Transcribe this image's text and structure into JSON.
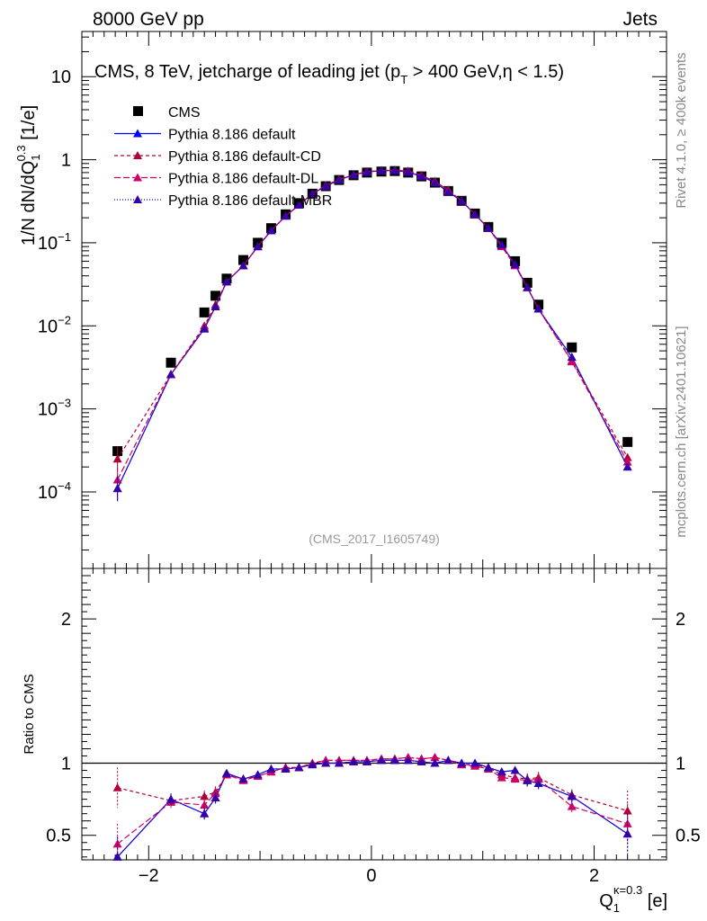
{
  "header": {
    "left": "8000 GeV pp",
    "right": "Jets"
  },
  "top_title": {
    "main": "CMS, 8 TeV, jetcharge of leading jet (p",
    "sub_T": "T",
    "rest": " > 400 GeV,η < 1.5)"
  },
  "side_text": {
    "rivet": "Rivet 4.1.0, ≥ 400k events",
    "mcplots": "mcplots.cern.ch [arXiv:2401.10621]"
  },
  "analysis_id": "(CMS_2017_I1605749)",
  "y_label_top": {
    "main": "1/N dN/dQ",
    "sub": "1",
    "sup": "0.3",
    "unit": " [1/e]"
  },
  "y_label_bottom": "Ratio to CMS",
  "x_label": {
    "main": "Q",
    "sub": "1",
    "sup": "κ=0.3",
    "unit": " [e]"
  },
  "legend": [
    {
      "label": "CMS",
      "color": "#000000",
      "marker": "square",
      "dash": ""
    },
    {
      "label": "Pythia 8.186 default",
      "color": "#0000ff",
      "marker": "triangle",
      "dash": ""
    },
    {
      "label": "Pythia 8.186 default-CD",
      "color": "#b0003a",
      "marker": "triangle",
      "dash": "4,3"
    },
    {
      "label": "Pythia 8.186 default-DL",
      "color": "#cc0066",
      "marker": "triangle",
      "dash": "7,3"
    },
    {
      "label": "Pythia 8.186 default-MBR",
      "color": "#3300aa",
      "marker": "triangle",
      "dash": "1,2"
    }
  ],
  "chart_data": [
    {
      "type": "scatter",
      "panel": "main",
      "title": "CMS, 8 TeV, jetcharge of leading jet (pT > 400 GeV,η < 1.5)",
      "xlabel": "Q1^κ=0.3 [e]",
      "ylabel": "1/N dN/dQ1^0.3 [1/e]",
      "yscale": "log",
      "xlim": [
        -2.6,
        2.65
      ],
      "ylim": [
        1.2e-05,
        35
      ],
      "x_ticks": [
        -2,
        0,
        2
      ],
      "y_tick_labels": [
        "10^-4",
        "10^-3",
        "10^-2",
        "10^-1",
        "1",
        "10"
      ],
      "x": [
        -2.28,
        -1.8,
        -1.5,
        -1.4,
        -1.3,
        -1.15,
        -1.02,
        -0.9,
        -0.77,
        -0.65,
        -0.53,
        -0.41,
        -0.29,
        -0.16,
        -0.04,
        0.09,
        0.21,
        0.33,
        0.45,
        0.57,
        0.69,
        0.81,
        0.93,
        1.05,
        1.17,
        1.29,
        1.4,
        1.5,
        1.8,
        2.3
      ],
      "series": [
        {
          "name": "CMS",
          "values": [
            0.00031,
            0.0036,
            0.0145,
            0.023,
            0.037,
            0.062,
            0.1,
            0.15,
            0.22,
            0.3,
            0.39,
            0.48,
            0.57,
            0.65,
            0.7,
            0.72,
            0.73,
            0.7,
            0.63,
            0.53,
            0.42,
            0.32,
            0.225,
            0.155,
            0.1,
            0.06,
            0.033,
            0.018,
            0.0055,
            0.0004
          ]
        },
        {
          "name": "Pythia 8.186 default",
          "values": [
            0.00011,
            0.0026,
            0.0092,
            0.017,
            0.034,
            0.053,
            0.09,
            0.14,
            0.21,
            0.285,
            0.39,
            0.48,
            0.57,
            0.66,
            0.71,
            0.74,
            0.74,
            0.71,
            0.63,
            0.53,
            0.41,
            0.32,
            0.22,
            0.15,
            0.094,
            0.055,
            0.029,
            0.016,
            0.0042,
            0.0002
          ]
        },
        {
          "name": "Pythia 8.186 default-CD",
          "values": [
            0.00025,
            0.0026,
            0.01,
            0.018,
            0.034,
            0.053,
            0.09,
            0.14,
            0.21,
            0.285,
            0.39,
            0.49,
            0.58,
            0.66,
            0.72,
            0.74,
            0.75,
            0.73,
            0.65,
            0.55,
            0.43,
            0.32,
            0.22,
            0.15,
            0.092,
            0.054,
            0.029,
            0.016,
            0.0038,
            0.00026
          ]
        },
        {
          "name": "Pythia 8.186 default-DL",
          "values": [
            0.00014,
            0.0026,
            0.0095,
            0.017,
            0.034,
            0.053,
            0.09,
            0.14,
            0.21,
            0.285,
            0.39,
            0.49,
            0.58,
            0.66,
            0.72,
            0.74,
            0.75,
            0.73,
            0.65,
            0.55,
            0.43,
            0.32,
            0.22,
            0.15,
            0.09,
            0.053,
            0.029,
            0.016,
            0.0037,
            0.00023
          ]
        },
        {
          "name": "Pythia 8.186 default-MBR",
          "values": [
            0.00011,
            0.0026,
            0.0092,
            0.017,
            0.034,
            0.053,
            0.09,
            0.14,
            0.21,
            0.285,
            0.39,
            0.48,
            0.57,
            0.66,
            0.71,
            0.74,
            0.74,
            0.71,
            0.63,
            0.53,
            0.41,
            0.32,
            0.22,
            0.15,
            0.094,
            0.055,
            0.029,
            0.016,
            0.0042,
            0.0002
          ]
        }
      ]
    },
    {
      "type": "line",
      "panel": "ratio",
      "ylabel": "Ratio to CMS",
      "ylim": [
        0.33,
        2.35
      ],
      "y_ticks": [
        0.5,
        1,
        2
      ],
      "reference_line": 1,
      "x": [
        -2.28,
        -1.8,
        -1.5,
        -1.4,
        -1.3,
        -1.15,
        -1.02,
        -0.9,
        -0.77,
        -0.65,
        -0.53,
        -0.41,
        -0.29,
        -0.16,
        -0.04,
        0.09,
        0.21,
        0.33,
        0.45,
        0.57,
        0.69,
        0.81,
        0.93,
        1.05,
        1.17,
        1.29,
        1.4,
        1.5,
        1.8,
        2.3
      ],
      "series": [
        {
          "name": "Pythia 8.186 default",
          "values": [
            0.35,
            0.75,
            0.65,
            0.76,
            0.93,
            0.89,
            0.92,
            0.96,
            0.96,
            0.97,
            0.99,
            1.0,
            1.0,
            1.01,
            1.01,
            1.02,
            1.02,
            1.02,
            1.01,
            1.0,
            1.02,
            1.0,
            1.0,
            0.97,
            0.94,
            0.95,
            0.88,
            0.86,
            0.77,
            0.51
          ]
        },
        {
          "name": "Pythia 8.186 default-CD",
          "values": [
            0.83,
            0.74,
            0.77,
            0.8,
            0.92,
            0.89,
            0.91,
            0.94,
            0.97,
            0.97,
            1.0,
            1.02,
            1.02,
            1.02,
            1.02,
            1.03,
            1.03,
            1.04,
            1.03,
            1.04,
            1.02,
            0.99,
            0.99,
            0.97,
            0.92,
            0.9,
            0.89,
            0.9,
            0.78,
            0.67
          ]
        },
        {
          "name": "Pythia 8.186 default-DL",
          "values": [
            0.44,
            0.73,
            0.71,
            0.79,
            0.92,
            0.88,
            0.91,
            0.94,
            0.97,
            0.97,
            1.0,
            1.02,
            1.02,
            1.02,
            1.02,
            1.03,
            1.03,
            1.04,
            1.03,
            1.04,
            1.02,
            0.99,
            0.98,
            0.96,
            0.9,
            0.89,
            0.88,
            0.89,
            0.7,
            0.58
          ]
        },
        {
          "name": "Pythia 8.186 default-MBR",
          "values": [
            0.35,
            0.75,
            0.65,
            0.76,
            0.93,
            0.89,
            0.92,
            0.96,
            0.96,
            0.97,
            0.99,
            1.0,
            1.0,
            1.01,
            1.01,
            1.02,
            1.02,
            1.02,
            1.01,
            1.0,
            1.02,
            1.0,
            1.0,
            0.97,
            0.94,
            0.95,
            0.88,
            0.86,
            0.77,
            0.51
          ]
        }
      ]
    }
  ]
}
